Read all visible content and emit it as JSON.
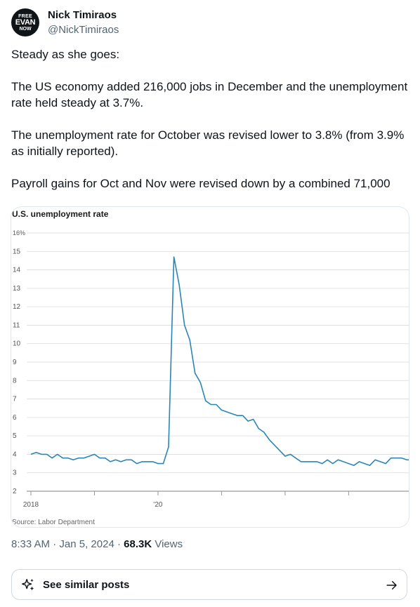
{
  "author": {
    "avatar_lines": [
      "FREE",
      "EVAN",
      "NOW"
    ],
    "name": "Nick Timiraos",
    "handle": "@NickTimiraos"
  },
  "post": {
    "paragraphs": [
      "Steady as she goes:",
      "The US economy added 216,000 jobs in December and the unemployment rate held steady at 3.7%.",
      "The unemployment rate for October was revised lower to 3.8% (from 3.9% as initially reported).",
      "Payroll gains for Oct and Nov were revised down by a combined 71,000"
    ],
    "time": "8:33 AM",
    "date": "Jan 5, 2024",
    "separator": "·",
    "views_count": "68.3K",
    "views_label": "Views"
  },
  "similar_posts": {
    "label": "See similar posts",
    "icon": "sparkle-icon",
    "arrow_icon": "arrow-right-icon"
  },
  "colors": {
    "line": "#2a86b5",
    "gridline": "#d9d9d9",
    "text_secondary": "#536471"
  },
  "chart_data": {
    "type": "line",
    "title": "U.S. unemployment rate",
    "source": "Source: Labor Department",
    "y_unit_label": "16%",
    "y_ticks": [
      "2",
      "3",
      "4",
      "5",
      "6",
      "7",
      "8",
      "9",
      "10",
      "11",
      "12",
      "13",
      "14",
      "15"
    ],
    "ylim": [
      2,
      16
    ],
    "x_labels": [
      {
        "label": "2018",
        "month_index": 0
      },
      {
        "label": "'20",
        "month_index": 24
      }
    ],
    "x_tick_month_indexes": [
      0,
      12,
      24,
      36,
      48,
      60,
      72
    ],
    "grid": true,
    "series": [
      {
        "start": "2018-01",
        "values": [
          4.0,
          4.1,
          4.0,
          4.0,
          3.8,
          4.0,
          3.8,
          3.8,
          3.7,
          3.8,
          3.8,
          3.9,
          4.0,
          3.8,
          3.8,
          3.6,
          3.7,
          3.6,
          3.7,
          3.7,
          3.5,
          3.6,
          3.6,
          3.6,
          3.5,
          3.5,
          4.4,
          14.7,
          13.2,
          11.0,
          10.2,
          8.4,
          7.9,
          6.9,
          6.7,
          6.7,
          6.4,
          6.3,
          6.2,
          6.1,
          6.1,
          5.8,
          5.9,
          5.4,
          5.2,
          4.8,
          4.5,
          4.2,
          3.9,
          4.0,
          3.8,
          3.6,
          3.6,
          3.6,
          3.6,
          3.5,
          3.7,
          3.5,
          3.7,
          3.6,
          3.5,
          3.4,
          3.6,
          3.5,
          3.4,
          3.7,
          3.6,
          3.5,
          3.8,
          3.8,
          3.8,
          3.7,
          3.7
        ]
      }
    ]
  }
}
